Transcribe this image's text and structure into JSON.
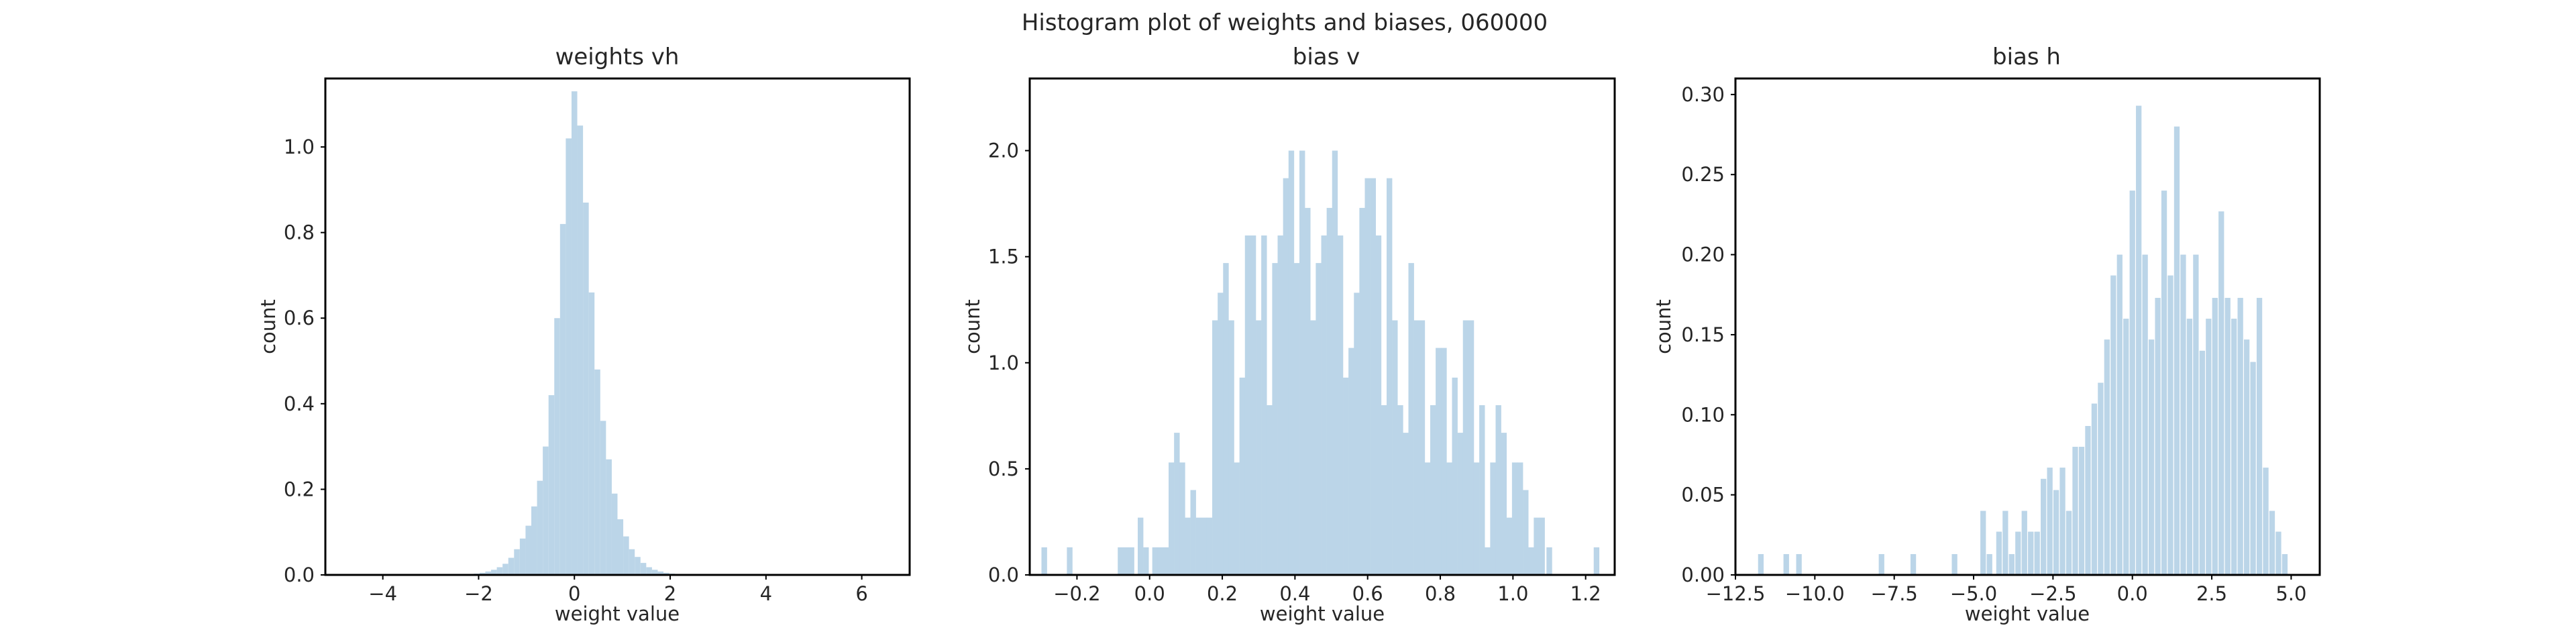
{
  "figure": {
    "suptitle": "Histogram plot of weights and biases, 060000"
  },
  "chart_data": [
    {
      "type": "bar",
      "title": "weights vh",
      "xlabel": "weight value",
      "ylabel": "count",
      "xlim": [
        -5.2,
        7.0
      ],
      "ylim": [
        0,
        1.16
      ],
      "xticks": [
        -4,
        -2,
        0,
        2,
        4,
        6
      ],
      "xtick_labels": [
        "−4",
        "−2",
        "0",
        "2",
        "4",
        "6"
      ],
      "yticks": [
        0.0,
        0.2,
        0.4,
        0.6,
        0.8,
        1.0
      ],
      "ytick_labels": [
        "0.0",
        "0.2",
        "0.4",
        "0.6",
        "0.8",
        "1.0"
      ],
      "bin_width": 0.12,
      "x": [
        -2.04,
        -1.92,
        -1.8,
        -1.68,
        -1.56,
        -1.44,
        -1.32,
        -1.2,
        -1.08,
        -0.96,
        -0.84,
        -0.72,
        -0.6,
        -0.48,
        -0.36,
        -0.24,
        -0.12,
        0.0,
        0.12,
        0.24,
        0.36,
        0.48,
        0.6,
        0.72,
        0.84,
        0.96,
        1.08,
        1.2,
        1.32,
        1.44,
        1.56,
        1.68,
        1.8,
        1.92,
        2.04
      ],
      "values": [
        0.003,
        0.005,
        0.008,
        0.012,
        0.018,
        0.026,
        0.04,
        0.06,
        0.085,
        0.115,
        0.16,
        0.22,
        0.3,
        0.42,
        0.6,
        0.82,
        1.02,
        1.13,
        1.05,
        0.87,
        0.66,
        0.48,
        0.36,
        0.27,
        0.19,
        0.13,
        0.09,
        0.06,
        0.042,
        0.028,
        0.018,
        0.012,
        0.008,
        0.005,
        0.003
      ]
    },
    {
      "type": "bar",
      "title": "bias v",
      "xlabel": "weight value",
      "ylabel": "count",
      "xlim": [
        -0.33,
        1.28
      ],
      "ylim": [
        0,
        2.34
      ],
      "xticks": [
        -0.2,
        0.0,
        0.2,
        0.4,
        0.6,
        0.8,
        1.0,
        1.2
      ],
      "xtick_labels": [
        "−0.2",
        "0.0",
        "0.2",
        "0.4",
        "0.6",
        "0.8",
        "1.0",
        "1.2"
      ],
      "yticks": [
        0.0,
        0.5,
        1.0,
        1.5,
        2.0
      ],
      "ytick_labels": [
        "0.0",
        "0.5",
        "1.0",
        "1.5",
        "2.0"
      ],
      "bin_width": 0.0155,
      "x": [
        -0.29,
        -0.22,
        -0.08,
        -0.065,
        -0.05,
        -0.025,
        -0.01,
        0.015,
        0.03,
        0.045,
        0.06,
        0.075,
        0.09,
        0.105,
        0.12,
        0.135,
        0.15,
        0.165,
        0.18,
        0.195,
        0.21,
        0.225,
        0.24,
        0.255,
        0.27,
        0.285,
        0.3,
        0.315,
        0.33,
        0.345,
        0.36,
        0.375,
        0.39,
        0.405,
        0.42,
        0.435,
        0.45,
        0.465,
        0.48,
        0.495,
        0.51,
        0.525,
        0.54,
        0.555,
        0.57,
        0.585,
        0.6,
        0.615,
        0.63,
        0.645,
        0.66,
        0.675,
        0.69,
        0.705,
        0.72,
        0.735,
        0.75,
        0.765,
        0.78,
        0.795,
        0.81,
        0.825,
        0.84,
        0.855,
        0.87,
        0.885,
        0.9,
        0.915,
        0.93,
        0.945,
        0.96,
        0.975,
        0.99,
        1.005,
        1.02,
        1.035,
        1.05,
        1.065,
        1.08,
        1.1,
        1.23
      ],
      "values": [
        0.13,
        0.13,
        0.13,
        0.13,
        0.13,
        0.27,
        0.13,
        0.13,
        0.13,
        0.13,
        0.53,
        0.67,
        0.53,
        0.27,
        0.4,
        0.27,
        0.27,
        0.27,
        1.2,
        1.33,
        1.47,
        1.2,
        0.53,
        0.93,
        1.6,
        1.6,
        1.2,
        1.6,
        0.8,
        1.47,
        1.6,
        1.87,
        2.0,
        1.47,
        2.0,
        1.73,
        1.2,
        1.47,
        1.6,
        1.73,
        2.0,
        1.6,
        0.93,
        1.07,
        1.33,
        1.73,
        1.87,
        1.87,
        1.6,
        0.8,
        1.87,
        1.2,
        0.8,
        0.67,
        1.47,
        1.2,
        1.2,
        0.53,
        0.8,
        1.07,
        1.07,
        0.53,
        0.93,
        0.67,
        1.2,
        1.2,
        0.53,
        0.8,
        0.13,
        0.53,
        0.8,
        0.67,
        0.27,
        0.53,
        0.53,
        0.4,
        0.13,
        0.27,
        0.27,
        0.13,
        0.13
      ]
    },
    {
      "type": "bar",
      "title": "bias h",
      "xlabel": "weight value",
      "ylabel": "count",
      "xlim": [
        -12.5,
        5.9
      ],
      "ylim": [
        0,
        0.31
      ],
      "xticks": [
        -12.5,
        -10.0,
        -7.5,
        -5.0,
        -2.5,
        0.0,
        2.5,
        5.0
      ],
      "xtick_labels": [
        "−12.5",
        "−10.0",
        "−7.5",
        "−5.0",
        "−2.5",
        "0.0",
        "2.5",
        "5.0"
      ],
      "yticks": [
        0.0,
        0.05,
        0.1,
        0.15,
        0.2,
        0.25,
        0.3
      ],
      "ytick_labels": [
        "0.00",
        "0.05",
        "0.10",
        "0.15",
        "0.20",
        "0.25",
        "0.30"
      ],
      "bin_width": 0.175,
      "x": [
        -11.7,
        -10.9,
        -10.5,
        -7.9,
        -6.9,
        -5.6,
        -4.7,
        -4.5,
        -4.2,
        -4.0,
        -3.8,
        -3.6,
        -3.4,
        -3.2,
        -3.0,
        -2.8,
        -2.6,
        -2.4,
        -2.2,
        -2.0,
        -1.8,
        -1.6,
        -1.4,
        -1.2,
        -1.0,
        -0.8,
        -0.6,
        -0.4,
        -0.2,
        0.0,
        0.2,
        0.4,
        0.6,
        0.8,
        1.0,
        1.2,
        1.4,
        1.6,
        1.8,
        2.0,
        2.2,
        2.4,
        2.6,
        2.8,
        3.0,
        3.2,
        3.4,
        3.6,
        3.8,
        4.0,
        4.2,
        4.4,
        4.6,
        4.8
      ],
      "values": [
        0.013,
        0.013,
        0.013,
        0.013,
        0.013,
        0.013,
        0.04,
        0.013,
        0.027,
        0.04,
        0.013,
        0.027,
        0.04,
        0.027,
        0.027,
        0.06,
        0.067,
        0.053,
        0.067,
        0.04,
        0.08,
        0.08,
        0.093,
        0.107,
        0.12,
        0.147,
        0.187,
        0.2,
        0.16,
        0.24,
        0.293,
        0.2,
        0.147,
        0.173,
        0.24,
        0.187,
        0.28,
        0.2,
        0.16,
        0.2,
        0.14,
        0.16,
        0.173,
        0.227,
        0.173,
        0.16,
        0.173,
        0.147,
        0.133,
        0.173,
        0.067,
        0.04,
        0.027,
        0.013
      ]
    }
  ]
}
